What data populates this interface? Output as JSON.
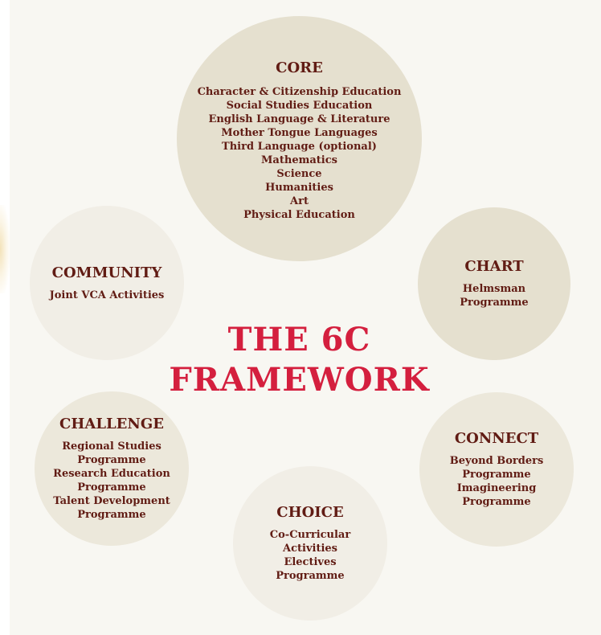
{
  "title": {
    "line1": "THE 6C",
    "line2": "FRAMEWORK"
  },
  "colors": {
    "title": "#d41f3e",
    "text": "#611c14",
    "circle_dark": "#e5e0cf",
    "circle_light": "#f1eee6",
    "background": "#f8f7f2"
  },
  "core": {
    "heading": "CORE",
    "items": [
      "Character  & Citizenship Education",
      "Social Studies Education",
      "English Language & Literature",
      "Mother Tongue Languages",
      "Third Language (optional)",
      "Mathematics",
      "Science",
      "Humanities",
      "Art",
      "Physical Education"
    ]
  },
  "chart": {
    "heading": "CHART",
    "items": [
      "Helmsman",
      "Programme"
    ]
  },
  "community": {
    "heading": "COMMUNITY",
    "items": [
      "Joint VCA Activities"
    ]
  },
  "challenge": {
    "heading": "CHALLENGE",
    "items": [
      "Regional Studies",
      "Programme",
      "Research Education",
      "Programme",
      "Talent Development",
      "Programme"
    ]
  },
  "connect": {
    "heading": "CONNECT",
    "items": [
      "Beyond Borders",
      "Programme",
      "Imagineering",
      "Programme"
    ]
  },
  "choice": {
    "heading": "CHOICE",
    "items": [
      "Co-Curricular",
      "Activities",
      "Electives",
      "Programme"
    ]
  }
}
